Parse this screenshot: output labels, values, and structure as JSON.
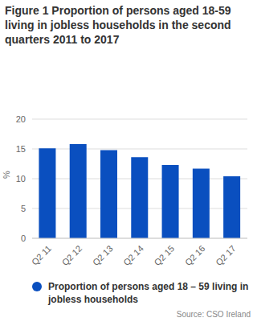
{
  "chart_data": {
    "type": "bar",
    "title": "Figure 1 Proportion of persons aged 18-59 living in jobless households in the second quarters 2011 to 2017",
    "y_label": "%",
    "categories": [
      "Q2 11",
      "Q2 12",
      "Q2 13",
      "Q2 14",
      "Q2 15",
      "Q2 16",
      "Q2 17"
    ],
    "series": [
      {
        "name": "Proportion of persons aged 18 – 59 living in jobless households",
        "color": "#0a4fbf",
        "values": [
          15.1,
          15.8,
          14.8,
          13.6,
          12.3,
          11.7,
          10.4
        ]
      }
    ],
    "ylim": [
      0,
      20
    ],
    "yticks": [
      0,
      5,
      10,
      15,
      20
    ],
    "grid": true,
    "legend": "bottom",
    "annotations": [
      "Source: CSO Ireland"
    ]
  }
}
